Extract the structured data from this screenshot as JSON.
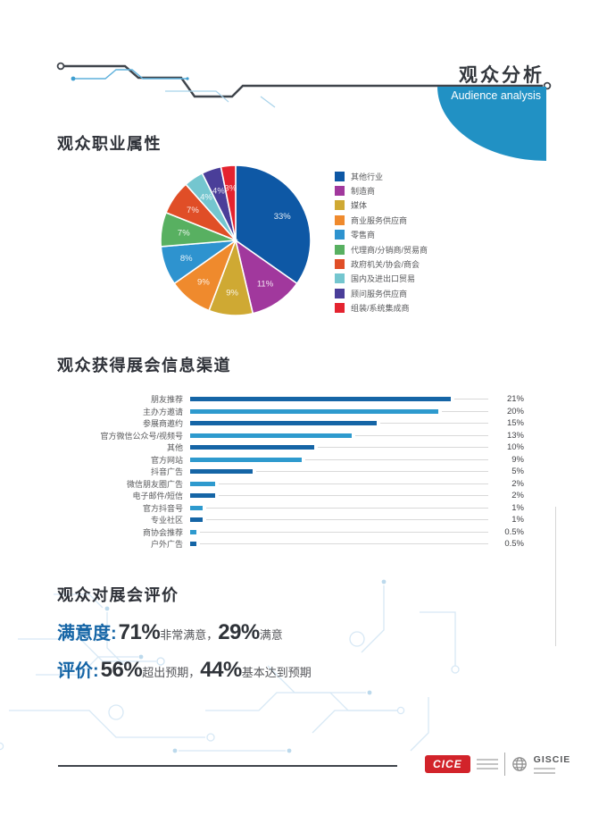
{
  "header": {
    "title": "观众分析",
    "subtitle": "Audience analysis",
    "accent_color": "#2191c4"
  },
  "sections": {
    "pie_title": "观众职业属性",
    "bar_title": "观众获得展会信息渠道",
    "eval_title": "观众对展会评价"
  },
  "chart_data": [
    {
      "type": "pie",
      "title": "观众职业属性",
      "labels": [
        "其他行业",
        "制造商",
        "媒体",
        "商业服务供应商",
        "零售商",
        "代理商/分销商/贸易商",
        "政府机关/协会/商会",
        "国内及进出口贸易",
        "顾问服务供应商",
        "组装/系统集成商"
      ],
      "values": [
        33,
        11,
        9,
        9,
        8,
        7,
        7,
        4,
        4,
        3
      ],
      "value_labels": [
        "33%",
        "11%",
        "9%",
        "9%",
        "8%",
        "7%",
        "7%",
        "4%",
        "4%",
        "3%"
      ],
      "colors": [
        "#0e58a5",
        "#a1389d",
        "#cfa933",
        "#ef8a2d",
        "#2e93cf",
        "#58b061",
        "#e04e27",
        "#74c6cf",
        "#4a3e99",
        "#e4232f"
      ],
      "legend_position": "right",
      "start_angle_deg": -90,
      "direction": "clockwise"
    },
    {
      "type": "bar",
      "title": "观众获得展会信息渠道",
      "orientation": "horizontal",
      "categories": [
        "朋友推荐",
        "主办方邀请",
        "参展商邀约",
        "官方微信公众号/视频号",
        "其他",
        "官方网站",
        "抖音广告",
        "微信朋友圈广告",
        "电子邮件/短信",
        "官方抖音号",
        "专业社区",
        "商协会推荐",
        "户外广告"
      ],
      "values": [
        21,
        20,
        15,
        13,
        10,
        9,
        5,
        2,
        2,
        1,
        1,
        0.5,
        0.5
      ],
      "value_labels": [
        "21%",
        "20%",
        "15%",
        "13%",
        "10%",
        "9%",
        "5%",
        "2%",
        "2%",
        "1%",
        "1%",
        "0.5%",
        "0.5%"
      ],
      "bar_colors_alternate": [
        "#1565a6",
        "#2e9ace"
      ],
      "xlim": [
        0,
        21
      ],
      "grid": false,
      "track_color": "#d9d9d9"
    }
  ],
  "evaluation": {
    "rows": [
      {
        "label": "满意度:",
        "segments": [
          {
            "value": "71%",
            "desc": "非常满意，"
          },
          {
            "value": "29%",
            "desc": "满意"
          }
        ]
      },
      {
        "label": "评价:",
        "segments": [
          {
            "value": "56%",
            "desc": "超出预期，"
          },
          {
            "value": "44%",
            "desc": "基本达到预期"
          }
        ]
      }
    ]
  },
  "footer": {
    "cice_label": "CICE",
    "giscie_label": "GISCIE"
  }
}
